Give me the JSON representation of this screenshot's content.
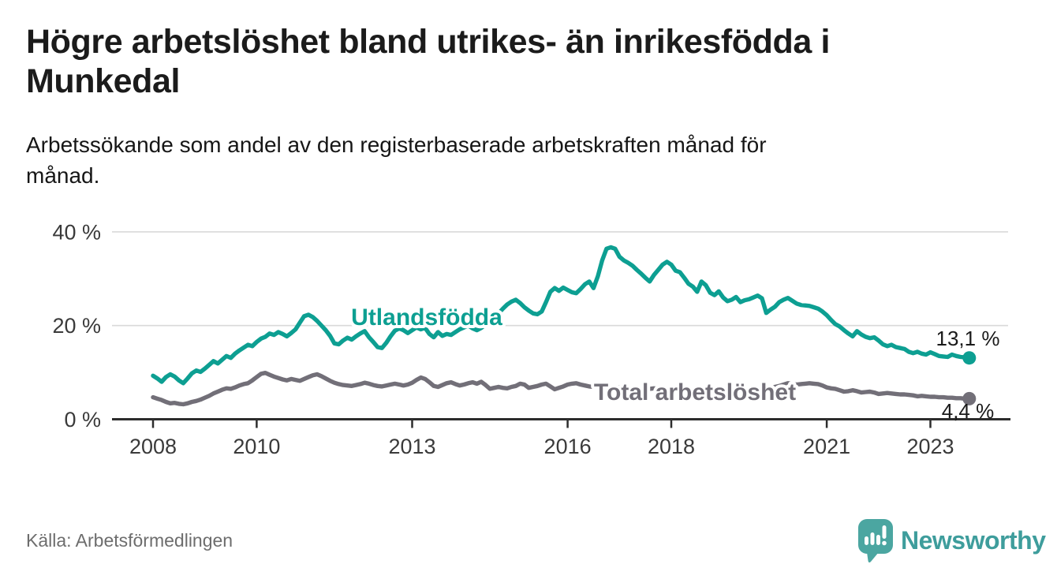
{
  "header": {
    "title_lines": [
      "Högre arbetslöshet bland utrikes- än inrikesfödda i",
      "Munkedal"
    ],
    "subtitle_lines": [
      "Arbetssökande som andel av den registerbaserade arbetskraften månad för",
      "månad."
    ]
  },
  "chart_data": {
    "type": "line",
    "unit": "%",
    "x_start": "2008-01",
    "x_end": "2023-10",
    "frequency": "monthly",
    "x_ticks": [
      2008,
      2010,
      2013,
      2016,
      2018,
      2021,
      2023
    ],
    "y_ticks": [
      0,
      20,
      40
    ],
    "y_tick_labels": [
      "0 %",
      "20 %",
      "40 %"
    ],
    "ylim": [
      0,
      42
    ],
    "grid": "horizontal",
    "series": [
      {
        "name": "Utlandsfödda",
        "color": "#0d9f92",
        "end_value": 13.1,
        "end_label": "13,1 %",
        "values": [
          9.3,
          8.7,
          8.0,
          9.0,
          9.6,
          9.1,
          8.3,
          7.7,
          8.7,
          9.8,
          10.4,
          10.1,
          10.8,
          11.6,
          12.4,
          11.9,
          12.7,
          13.5,
          13.1,
          14.0,
          14.7,
          15.3,
          15.9,
          15.6,
          16.5,
          17.2,
          17.6,
          18.3,
          18.0,
          18.6,
          18.2,
          17.7,
          18.4,
          19.2,
          20.6,
          22.0,
          22.3,
          21.8,
          21.0,
          20.0,
          19.0,
          17.8,
          16.2,
          16.0,
          16.8,
          17.4,
          17.0,
          17.7,
          18.3,
          18.8,
          17.5,
          16.5,
          15.4,
          15.2,
          16.3,
          17.7,
          18.9,
          19.4,
          19.0,
          18.4,
          19.0,
          19.6,
          19.2,
          19.5,
          18.2,
          17.5,
          18.6,
          17.8,
          18.2,
          18.0,
          18.6,
          19.2,
          19.6,
          20.0,
          19.4,
          19.0,
          19.5,
          20.2,
          20.8,
          21.6,
          22.6,
          23.6,
          24.5,
          25.1,
          25.5,
          24.8,
          23.9,
          23.2,
          22.6,
          22.4,
          23.0,
          25.0,
          27.2,
          28.0,
          27.4,
          28.1,
          27.6,
          27.1,
          26.9,
          27.8,
          28.8,
          29.4,
          28.0,
          30.5,
          33.9,
          36.4,
          36.7,
          36.4,
          34.7,
          33.9,
          33.4,
          32.8,
          31.9,
          31.1,
          30.2,
          29.4,
          30.8,
          31.9,
          33.0,
          33.6,
          33.0,
          31.7,
          31.4,
          30.2,
          28.9,
          28.3,
          27.2,
          29.4,
          28.6,
          27.0,
          26.5,
          27.3,
          26.0,
          25.2,
          25.5,
          26.1,
          25.0,
          25.4,
          25.6,
          26.0,
          26.4,
          25.8,
          22.7,
          23.4,
          24.0,
          25.0,
          25.5,
          25.9,
          25.3,
          24.7,
          24.4,
          24.3,
          24.2,
          23.9,
          23.6,
          23.0,
          22.2,
          21.2,
          20.3,
          19.8,
          19.0,
          18.3,
          17.7,
          18.8,
          18.1,
          17.6,
          17.3,
          17.5,
          16.8,
          16.0,
          15.6,
          15.9,
          15.4,
          15.2,
          15.0,
          14.4,
          14.1,
          14.4,
          14.0,
          13.8,
          14.3,
          13.9,
          13.5,
          13.4,
          13.3,
          13.8,
          13.5,
          13.3,
          13.2,
          13.1
        ]
      },
      {
        "name": "Total arbetslöshet",
        "color": "#726f78",
        "end_value": 4.4,
        "end_label": "4,4 %",
        "values": [
          4.7,
          4.4,
          4.1,
          3.7,
          3.4,
          3.5,
          3.3,
          3.2,
          3.4,
          3.7,
          3.9,
          4.2,
          4.6,
          5.0,
          5.5,
          5.9,
          6.3,
          6.6,
          6.5,
          6.8,
          7.2,
          7.5,
          7.7,
          8.3,
          9.0,
          9.7,
          9.9,
          9.5,
          9.1,
          8.8,
          8.5,
          8.3,
          8.6,
          8.4,
          8.2,
          8.6,
          9.0,
          9.4,
          9.6,
          9.2,
          8.7,
          8.2,
          7.8,
          7.5,
          7.3,
          7.2,
          7.1,
          7.3,
          7.5,
          7.8,
          7.6,
          7.3,
          7.1,
          7.0,
          7.2,
          7.4,
          7.6,
          7.4,
          7.2,
          7.4,
          7.8,
          8.4,
          8.9,
          8.6,
          7.9,
          7.1,
          6.9,
          7.3,
          7.7,
          7.9,
          7.5,
          7.2,
          7.4,
          7.7,
          7.9,
          7.6,
          8.0,
          7.3,
          6.5,
          6.7,
          6.9,
          6.7,
          6.6,
          6.9,
          7.1,
          7.6,
          7.4,
          6.7,
          6.9,
          7.1,
          7.4,
          7.6,
          7.0,
          6.4,
          6.7,
          7.0,
          7.4,
          7.6,
          7.7,
          7.4,
          7.2,
          7.0,
          6.9,
          6.8,
          6.7,
          6.6,
          6.5,
          6.7,
          6.8,
          6.9,
          6.7,
          6.5,
          6.3,
          6.2,
          6.3,
          6.5,
          6.6,
          6.5,
          6.4,
          6.5,
          6.6,
          6.5,
          6.4,
          6.2,
          6.1,
          6.0,
          6.1,
          6.3,
          6.2,
          6.1,
          6.0,
          6.1,
          6.2,
          6.3,
          6.2,
          6.1,
          6.2,
          6.3,
          6.4,
          6.5,
          6.6,
          6.5,
          6.4,
          6.6,
          6.9,
          7.1,
          7.4,
          7.7,
          7.6,
          7.4,
          7.5,
          7.6,
          7.7,
          7.6,
          7.5,
          7.2,
          6.8,
          6.6,
          6.5,
          6.2,
          5.9,
          6.0,
          6.2,
          6.0,
          5.7,
          5.8,
          5.9,
          5.7,
          5.4,
          5.5,
          5.6,
          5.5,
          5.4,
          5.3,
          5.3,
          5.2,
          5.1,
          4.9,
          5.0,
          4.9,
          4.8,
          4.8,
          4.7,
          4.7,
          4.6,
          4.6,
          4.5,
          4.5,
          4.4,
          4.4
        ]
      }
    ]
  },
  "footer": {
    "source": "Källa: Arbetsförmedlingen",
    "brand": "Newsworthy"
  },
  "colors": {
    "accent_teal": "#0d9f92",
    "neutral_gray": "#726f78",
    "grid": "#dadada",
    "axis": "#2d2d2d",
    "logo_teal": "#4ba6a1",
    "logo_text": "#3e9d9c"
  }
}
